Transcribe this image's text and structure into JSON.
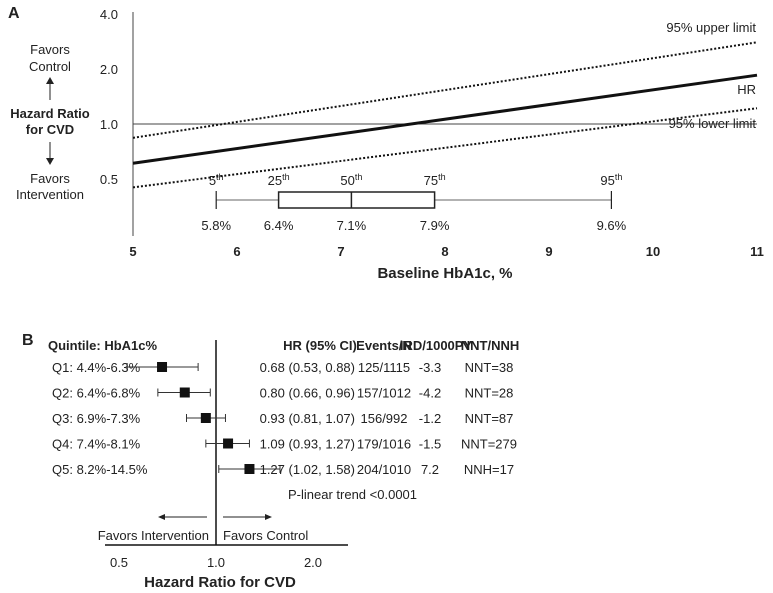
{
  "chart_data": [
    {
      "panel_label": "A",
      "type": "line",
      "xlabel": "Baseline HbA1c, %",
      "ylabel_lines": [
        "Hazard Ratio",
        "for CVD"
      ],
      "favors_up": [
        "Favors",
        "Control"
      ],
      "favors_down": [
        "Favors",
        "Intervention"
      ],
      "x_ticks": [
        5,
        6,
        7,
        8,
        9,
        10,
        11
      ],
      "y_ticks": [
        "4.0",
        "2.0",
        "1.0",
        "0.5"
      ],
      "y_tick_values": [
        4,
        2,
        1,
        0.5
      ],
      "y_scale": "log",
      "xlim": [
        5,
        11
      ],
      "ylim": [
        0.4,
        4
      ],
      "reference_line": 1.0,
      "series": [
        {
          "name": "95% upper limit",
          "style": "dotted",
          "x": [
            5,
            11
          ],
          "y": [
            0.84,
            2.8
          ]
        },
        {
          "name": "HR",
          "style": "solid",
          "x": [
            5,
            11
          ],
          "y": [
            0.61,
            1.85
          ]
        },
        {
          "name": "95% lower limit",
          "style": "dotted",
          "x": [
            5,
            11
          ],
          "y": [
            0.45,
            1.22
          ]
        }
      ],
      "boxplot": {
        "percentiles": [
          {
            "label": "5",
            "sup": "th",
            "value": 5.8,
            "text": "5.8%"
          },
          {
            "label": "25",
            "sup": "th",
            "value": 6.4,
            "text": "6.4%"
          },
          {
            "label": "50",
            "sup": "th",
            "value": 7.1,
            "text": "7.1%"
          },
          {
            "label": "75",
            "sup": "th",
            "value": 7.9,
            "text": "7.9%"
          },
          {
            "label": "95",
            "sup": "th",
            "value": 9.6,
            "text": "9.6%"
          }
        ]
      }
    },
    {
      "panel_label": "B",
      "type": "forest",
      "xlabel": "Hazard Ratio for CVD",
      "x_scale": "log",
      "x_ticks": [
        "0.5",
        "1.0",
        "2.0"
      ],
      "x_tick_values": [
        0.5,
        1,
        2
      ],
      "headers": {
        "quintile": "Quintile: HbA1c%",
        "hr": "HR (95% CI)",
        "events": "Events/N",
        "ird": "IRD/1000PY",
        "nnt": "NNT/NNH"
      },
      "rows": [
        {
          "label": "Q1: 4.4%-6.3%",
          "hr": 0.68,
          "lo": 0.53,
          "hi": 0.88,
          "hr_text": "0.68 (0.53, 0.88)",
          "events": "125/1115",
          "ird": "-3.3",
          "nnt": "NNT=38"
        },
        {
          "label": "Q2: 6.4%-6.8%",
          "hr": 0.8,
          "lo": 0.66,
          "hi": 0.96,
          "hr_text": "0.80 (0.66, 0.96)",
          "events": "157/1012",
          "ird": "-4.2",
          "nnt": "NNT=28"
        },
        {
          "label": "Q3: 6.9%-7.3%",
          "hr": 0.93,
          "lo": 0.81,
          "hi": 1.07,
          "hr_text": "0.93 (0.81, 1.07)",
          "events": "156/992",
          "ird": "-1.2",
          "nnt": "NNT=87"
        },
        {
          "label": "Q4: 7.4%-8.1%",
          "hr": 1.09,
          "lo": 0.93,
          "hi": 1.27,
          "hr_text": "1.09 (0.93, 1.27)",
          "events": "179/1016",
          "ird": "-1.5",
          "nnt": "NNT=279"
        },
        {
          "label": "Q5: 8.2%-14.5%",
          "hr": 1.27,
          "lo": 1.02,
          "hi": 1.58,
          "hr_text": "1.27 (1.02, 1.58)",
          "events": "204/1010",
          "ird": "7.2",
          "nnt": "NNH=17"
        }
      ],
      "p_trend": "P-linear trend <0.0001",
      "favors_left": "Favors Intervention",
      "favors_right": "Favors Control"
    }
  ]
}
